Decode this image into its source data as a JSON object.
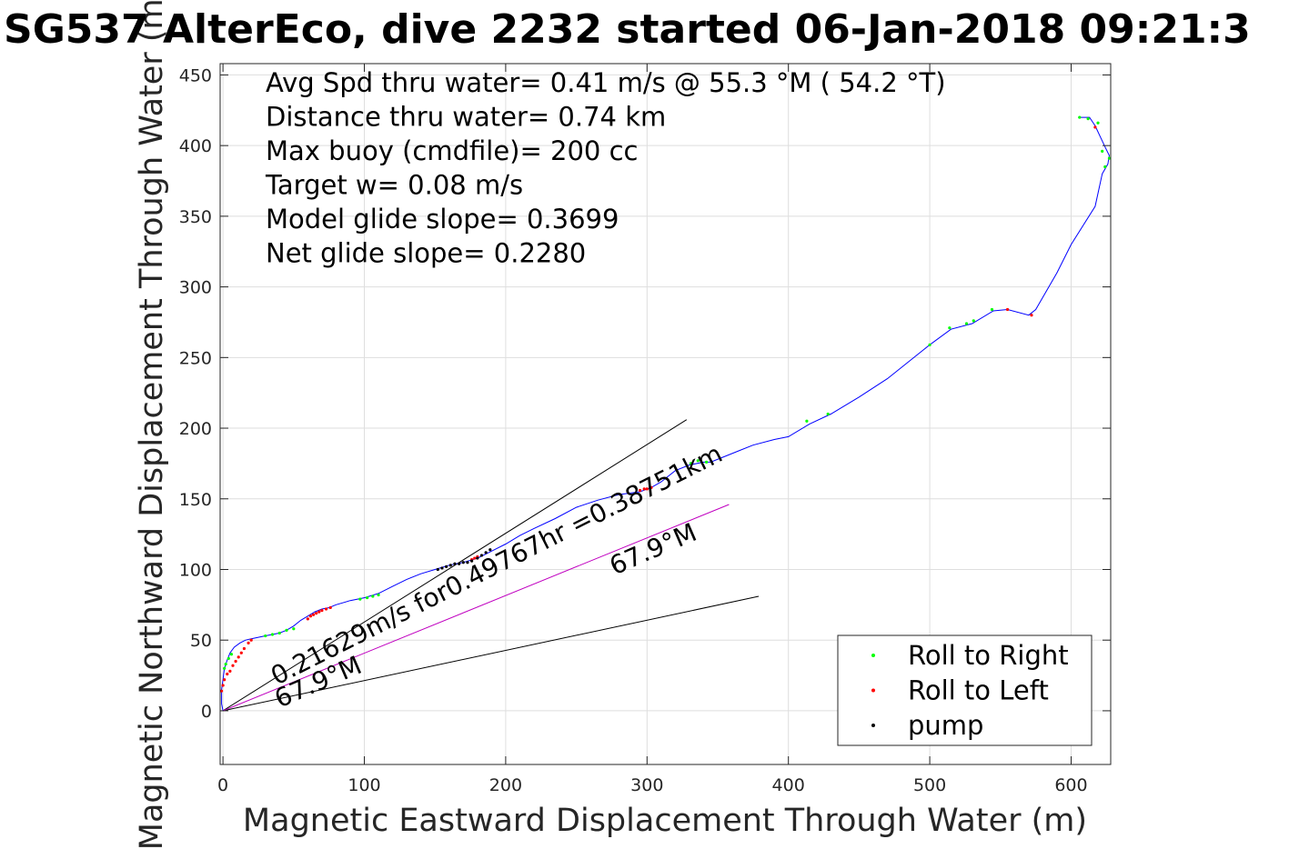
{
  "chart_data": {
    "type": "scatter",
    "title": "SG537 AlterEco, dive 2232 started 06-Jan-2018 09:21:3",
    "xlabel": "Magnetic Eastward Displacement Through Water (m)",
    "ylabel": "Magnetic Northward Displacement Through Water (m)",
    "xlim": [
      -2,
      628
    ],
    "ylim": [
      -38,
      458
    ],
    "x_ticks": [
      0,
      100,
      200,
      300,
      400,
      500,
      600
    ],
    "y_ticks": [
      0,
      50,
      100,
      150,
      200,
      250,
      300,
      350,
      400,
      450
    ],
    "grid": true,
    "legend_position": "bottom-right",
    "stats": [
      "Avg Spd thru water=  0.41 m/s @  55.3 °M ( 54.2 °T)",
      "Distance thru water=  0.74 km",
      "Max buoy (cmdfile)= 200 cc",
      "Target w= 0.08 m/s",
      "Model glide slope= 0.3699",
      "Net glide slope= 0.2280"
    ],
    "annotations": [
      {
        "text": "0.21629m/s for0.49767hr =0.38751km",
        "x": 38,
        "y": 18,
        "angle": 26.8
      },
      {
        "text": "67.9°M",
        "x": 40,
        "y": 2,
        "angle": 23.4
      },
      {
        "text": "67.9°M",
        "x": 277,
        "y": 96,
        "angle": 23.4
      }
    ],
    "reference_lines": [
      {
        "name": "",
        "color": "#000000",
        "x": [
          0,
          328
        ],
        "y": [
          0,
          206
        ]
      },
      {
        "name": "",
        "color": "#000000",
        "x": [
          0,
          379
        ],
        "y": [
          0,
          81
        ]
      },
      {
        "name": "",
        "color": "#c000c0",
        "x": [
          0,
          358
        ],
        "y": [
          0,
          146
        ]
      }
    ],
    "track": {
      "name": "",
      "color": "#0000ff",
      "x": [
        0,
        -1,
        -1,
        0,
        1,
        3,
        5,
        8,
        12,
        16,
        20,
        25,
        30,
        35,
        40,
        45,
        50,
        55,
        60,
        65,
        70,
        75,
        80,
        90,
        100,
        110,
        120,
        130,
        140,
        150,
        160,
        170,
        180,
        190,
        200,
        210,
        220,
        235,
        250,
        265,
        280,
        295,
        303,
        310,
        320,
        330,
        340,
        345,
        355,
        365,
        375,
        390,
        400,
        415,
        430,
        450,
        470,
        500,
        515,
        530,
        545,
        555,
        570,
        575,
        590,
        600,
        617,
        622,
        626,
        627,
        624,
        617,
        613,
        605
      ],
      "y": [
        0,
        5,
        15,
        22,
        30,
        36,
        41,
        45,
        48,
        50,
        51,
        52,
        53,
        54,
        55,
        57,
        60,
        64,
        67,
        70,
        72,
        73,
        75,
        78,
        80,
        83,
        88,
        93,
        97,
        100,
        103,
        105,
        108,
        113,
        118,
        124,
        129,
        136,
        144,
        149,
        153,
        155,
        158,
        162,
        170,
        174,
        176,
        176,
        180,
        184,
        188,
        192,
        194,
        203,
        210,
        222,
        235,
        259,
        270,
        274,
        283,
        284,
        280,
        284,
        310,
        330,
        357,
        380,
        387,
        393,
        399,
        414,
        420,
        420
      ]
    },
    "series": [
      {
        "name": "Roll to Right",
        "color": "#00ff00",
        "x": [
          1,
          2,
          4,
          6,
          30,
          35,
          40,
          45,
          50,
          97,
          102,
          106,
          110,
          331,
          336,
          342,
          413,
          428,
          500,
          514,
          526,
          531,
          544,
          606,
          612,
          619,
          624,
          627,
          622
        ],
        "y": [
          30,
          33,
          37,
          40,
          53,
          54,
          55,
          57,
          58,
          79,
          80,
          81,
          82,
          175,
          177,
          176,
          205,
          210,
          259,
          271,
          274,
          276,
          284,
          420,
          419,
          416,
          385,
          391,
          396
        ]
      },
      {
        "name": "Roll to Left",
        "color": "#ff0000",
        "x": [
          -1,
          0,
          1,
          3,
          5,
          7,
          9,
          11,
          13,
          15,
          18,
          20,
          60,
          62,
          64,
          66,
          68,
          70,
          73,
          76,
          176,
          178,
          180,
          295,
          298,
          300,
          303,
          555,
          572,
          617
        ],
        "y": [
          14,
          18,
          22,
          26,
          28,
          32,
          35,
          38,
          41,
          44,
          48,
          50,
          65,
          67,
          68,
          69,
          70,
          71,
          72,
          73,
          107,
          108,
          109,
          156,
          157,
          157,
          158,
          284,
          280,
          413
        ]
      },
      {
        "name": "pump",
        "color": "#000000",
        "x": [
          152,
          155,
          158,
          161,
          164,
          167,
          170,
          173,
          176,
          180,
          183,
          186,
          189
        ],
        "y": [
          100,
          101,
          102,
          103,
          104,
          104,
          105,
          105,
          106,
          108,
          110,
          112,
          114
        ]
      }
    ]
  }
}
